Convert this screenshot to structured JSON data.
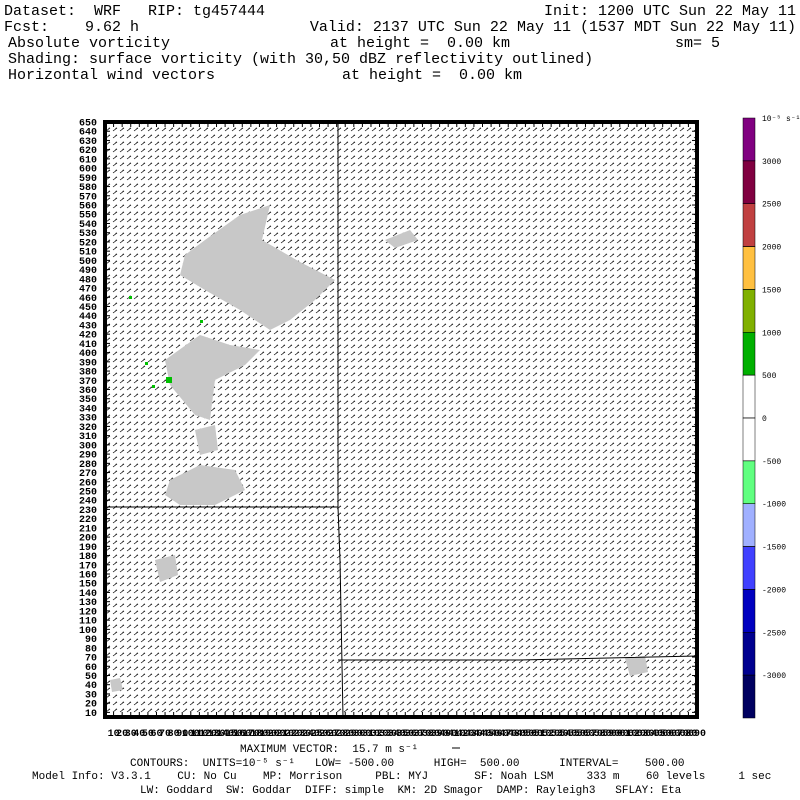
{
  "header": {
    "dataset": "Dataset:  WRF   RIP: tg457444",
    "init": "Init: 1200 UTC Sun 22 May 11",
    "fcst": "Fcst:    9.62 h",
    "valid": "Valid: 2137 UTC Sun 22 May 11 (1537 MDT Sun 22 May 11)",
    "field1": "Absolute vorticity",
    "field1_height": "at height =  0.00 km",
    "smoothing": "sm= 5",
    "shading": "Shading: surface vorticity (with 30,50 dBZ reflectivity outlined)",
    "field2": "Horizontal wind vectors",
    "field2_height": "at height =  0.00 km"
  },
  "chart_data": {
    "type": "map",
    "xlim": [
      0,
      690
    ],
    "xticks": [
      10,
      20,
      30,
      40,
      50,
      60,
      70,
      80,
      90,
      100,
      110,
      120,
      130,
      140,
      150,
      160,
      170,
      180,
      190,
      200,
      210,
      220,
      230,
      240,
      250,
      260,
      270,
      280,
      290,
      300,
      310,
      320,
      330,
      340,
      350,
      360,
      370,
      380,
      390,
      400,
      410,
      420,
      430,
      440,
      450,
      460,
      470,
      480,
      490,
      500,
      510,
      520,
      530,
      540,
      550,
      560,
      570,
      580,
      590,
      600,
      610,
      620,
      630,
      640,
      650,
      660,
      670,
      680,
      690
    ],
    "ylim": [
      5,
      650
    ],
    "yticks": [
      10,
      20,
      30,
      40,
      50,
      60,
      70,
      80,
      90,
      100,
      110,
      120,
      130,
      140,
      150,
      160,
      170,
      180,
      190,
      200,
      210,
      220,
      230,
      240,
      250,
      260,
      270,
      280,
      290,
      300,
      310,
      320,
      330,
      340,
      350,
      360,
      370,
      380,
      390,
      400,
      410,
      420,
      430,
      440,
      450,
      460,
      470,
      480,
      490,
      500,
      510,
      520,
      530,
      540,
      550,
      560,
      570,
      580,
      590,
      600,
      610,
      620,
      630,
      640,
      650
    ],
    "colorbar": {
      "unit": "10⁻⁵ s⁻¹",
      "levels": [
        3000,
        2500,
        2000,
        1500,
        1000,
        500,
        0,
        -500,
        -1000,
        -1500,
        -2000,
        -2500,
        -3000
      ],
      "colors": [
        "#800080",
        "#800040",
        "#c04040",
        "#ffc040",
        "#80b000",
        "#00b000",
        "#ffffff",
        "#ffffff",
        "#60ff80",
        "#a0b0ff",
        "#4040ff",
        "#0000c0",
        "#000090",
        "#000060"
      ]
    }
  },
  "footer": {
    "max_vector": "MAXIMUM VECTOR:  15.7 m s⁻¹",
    "contours": "CONTOURS:  UNITS=10⁻⁵ s⁻¹   LOW= -500.00      HIGH=  500.00      INTERVAL=    500.00",
    "model_info": "Model Info: V3.3.1    CU: No Cu    MP: Morrison     PBL: MYJ       SF: Noah LSM     333 m    60 levels     1 sec",
    "physics": "LW: Goddard  SW: Goddar  DIFF: simple  KM: 2D Smagor  DAMP: Rayleigh3   SFLAY: Eta"
  }
}
